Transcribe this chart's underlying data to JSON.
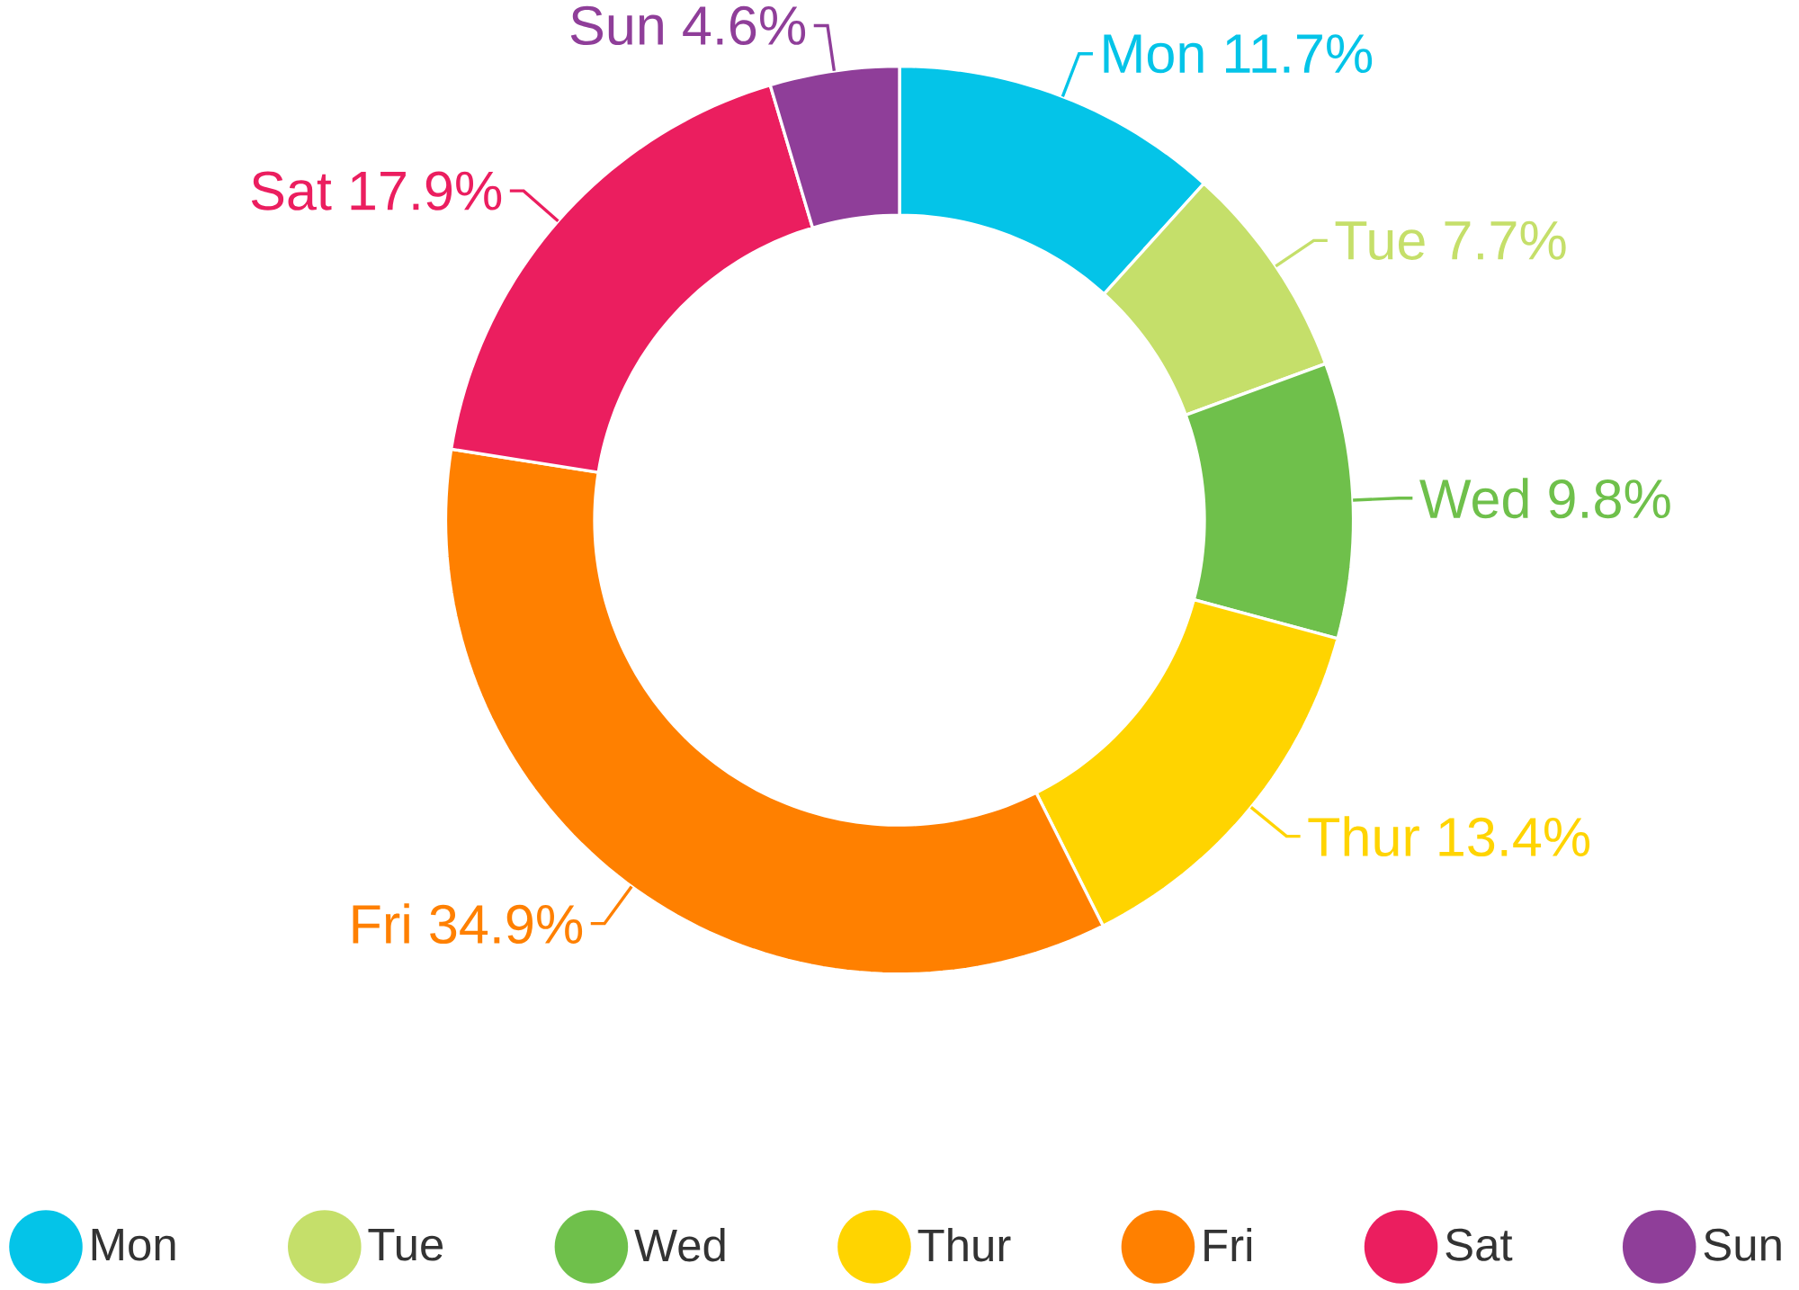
{
  "chart_data": {
    "type": "donut",
    "categories": [
      "Mon",
      "Tue",
      "Wed",
      "Thur",
      "Fri",
      "Sat",
      "Sun"
    ],
    "values": [
      11.7,
      7.7,
      9.8,
      13.4,
      34.9,
      17.9,
      4.6
    ],
    "value_labels": [
      "11.7%",
      "7.7%",
      "9.8%",
      "13.4%",
      "34.9%",
      "17.9%",
      "4.6%"
    ],
    "colors": [
      "#04c4e8",
      "#c5df6a",
      "#6fc04b",
      "#ffd400",
      "#ff8000",
      "#eb1e5f",
      "#8f3e99"
    ],
    "legend": "bottom"
  }
}
